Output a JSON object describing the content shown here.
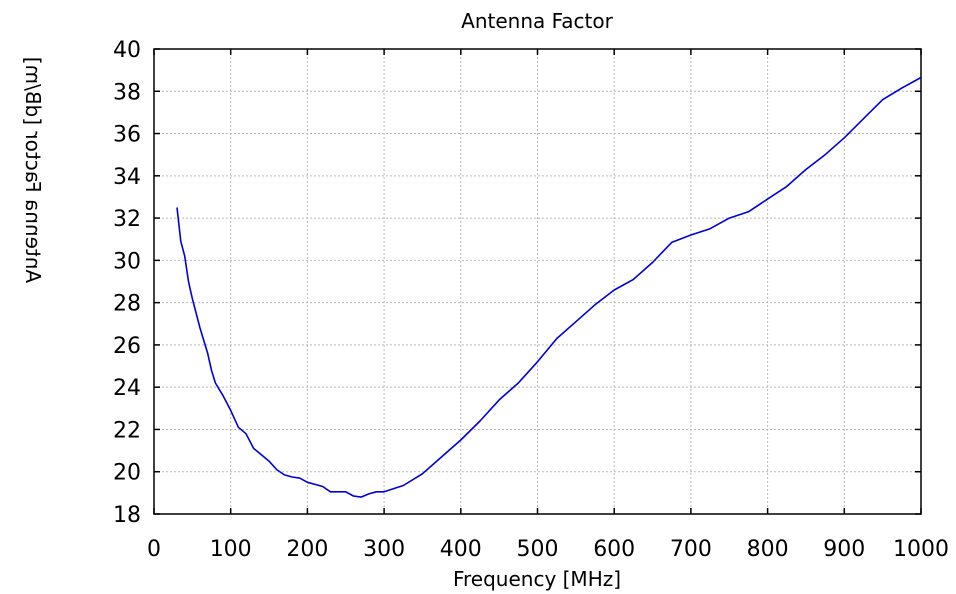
{
  "chart_data": {
    "type": "line",
    "title": "Antenna Factor",
    "xlabel": "Frequency [MHz]",
    "ylabel": "Antenna Factor [dB/m]",
    "xlim": [
      0,
      1000
    ],
    "ylim": [
      18,
      40
    ],
    "xticks": [
      0,
      100,
      200,
      300,
      400,
      500,
      600,
      700,
      800,
      900,
      1000
    ],
    "yticks": [
      18,
      20,
      22,
      24,
      26,
      28,
      30,
      32,
      34,
      36,
      38,
      40
    ],
    "grid": true,
    "line_color": "#0000dd",
    "series": [
      {
        "x": [
          30,
          35,
          40,
          45,
          50,
          60,
          70,
          75,
          80,
          90,
          100,
          110,
          120,
          130,
          140,
          150,
          160,
          170,
          180,
          190,
          200,
          210,
          220,
          230,
          240,
          250,
          260,
          270,
          280,
          290,
          300,
          325,
          350,
          375,
          400,
          425,
          450,
          475,
          500,
          525,
          550,
          575,
          600,
          625,
          650,
          675,
          700,
          725,
          750,
          775,
          800,
          825,
          850,
          875,
          900,
          925,
          950,
          975,
          1000
        ],
        "y": [
          32.5,
          30.9,
          30.2,
          29.0,
          28.2,
          26.8,
          25.6,
          24.8,
          24.2,
          23.6,
          22.9,
          22.1,
          21.8,
          21.1,
          20.8,
          20.5,
          20.1,
          19.85,
          19.75,
          19.7,
          19.5,
          19.4,
          19.3,
          19.05,
          19.05,
          19.05,
          18.85,
          18.8,
          18.95,
          19.05,
          19.05,
          19.35,
          19.9,
          20.7,
          21.5,
          22.4,
          23.4,
          24.2,
          25.2,
          26.3,
          27.1,
          27.9,
          28.6,
          29.1,
          29.9,
          30.85,
          31.2,
          31.5,
          32.0,
          32.3,
          32.9,
          33.5,
          34.3,
          35.0,
          35.8,
          36.7,
          37.6,
          38.15,
          38.65
        ]
      }
    ]
  }
}
